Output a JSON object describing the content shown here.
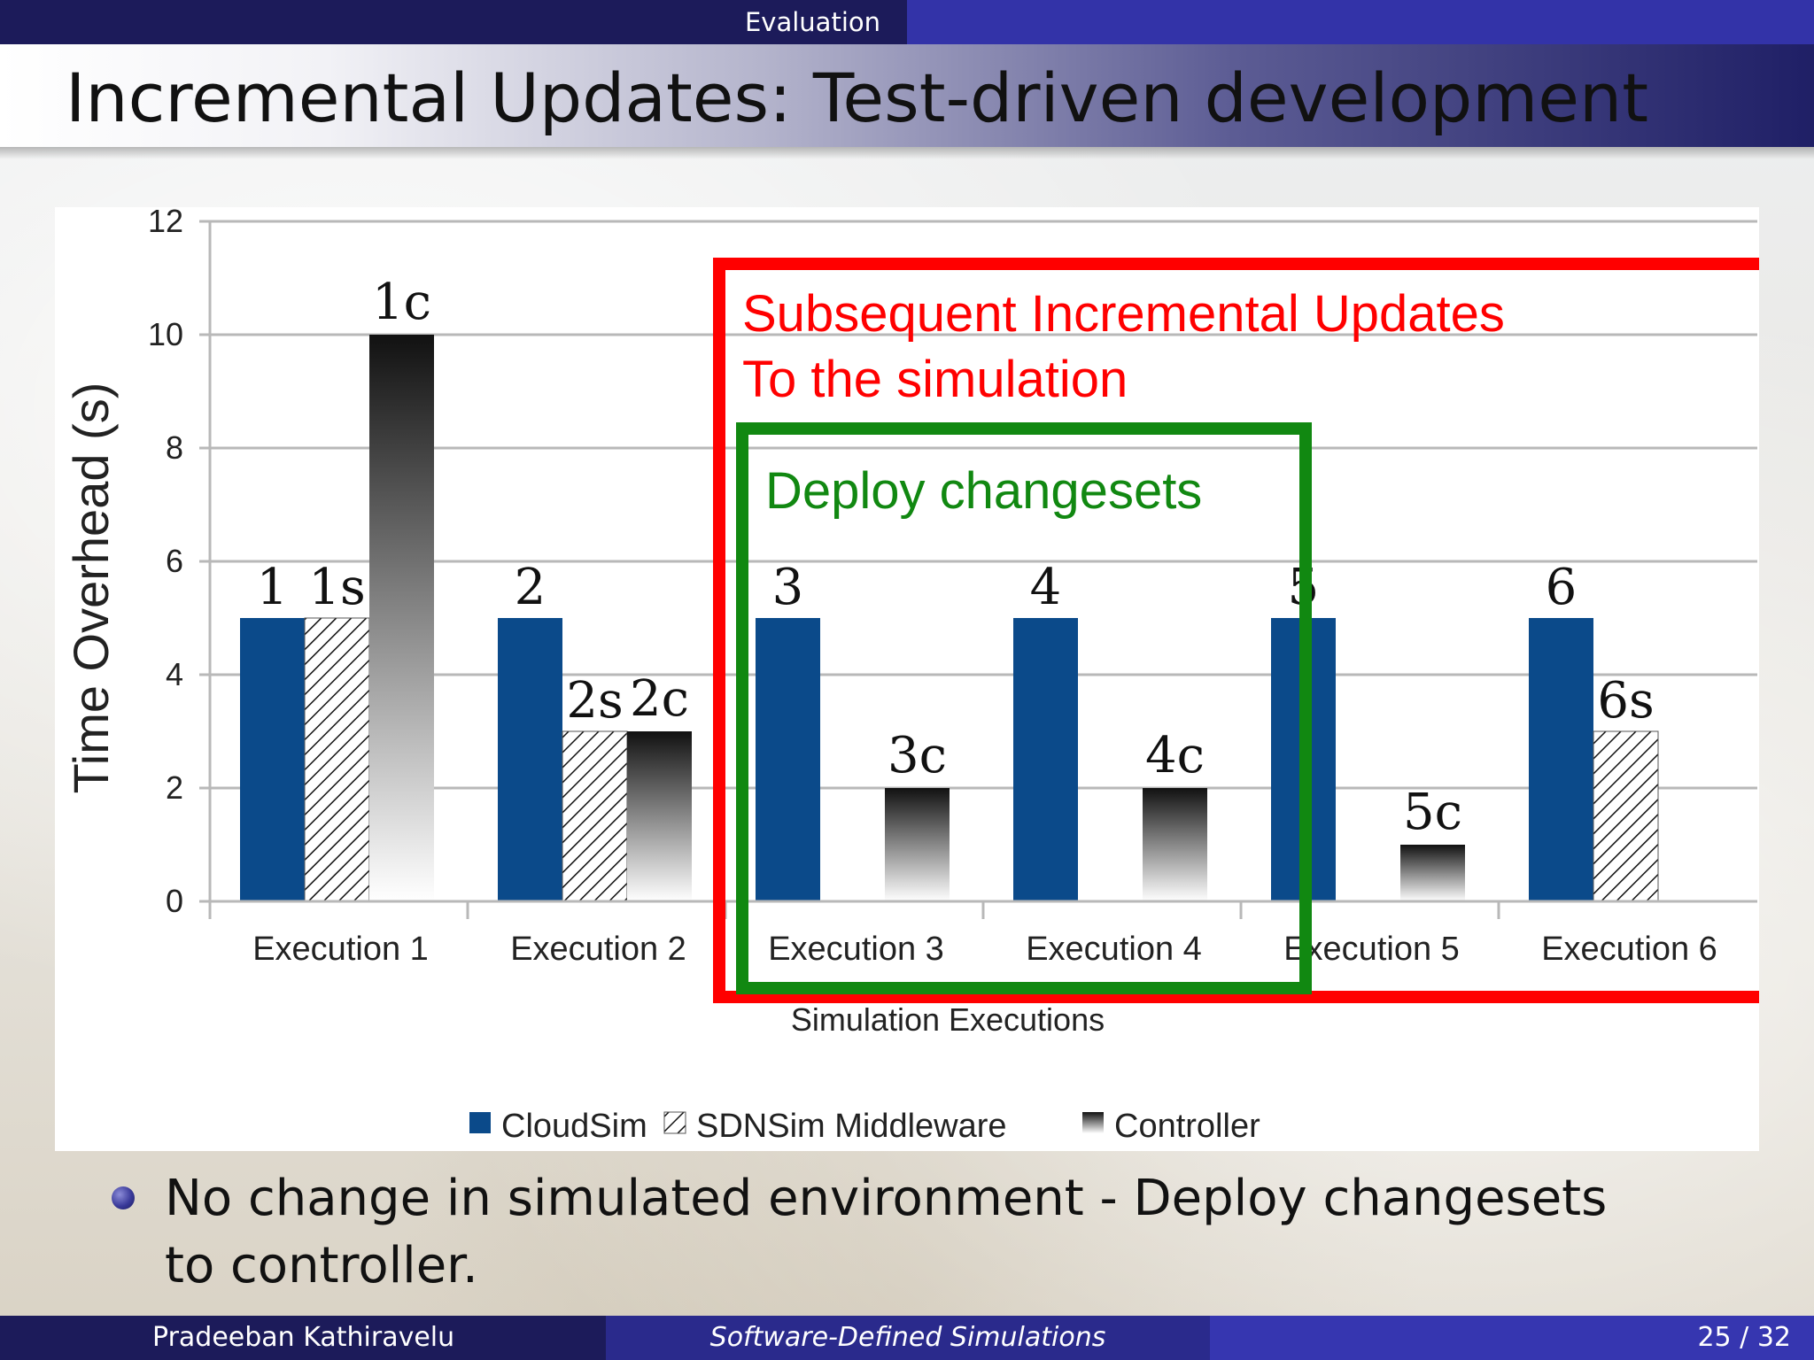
{
  "header": {
    "section": "Evaluation"
  },
  "title": "Incremental Updates:  Test-driven development",
  "bullet": "No change in simulated environment - Deploy changesets to controller.",
  "footer": {
    "author": "Pradeeban Kathiravelu",
    "talk": "Software-Defined Simulations",
    "page": "25 / 32"
  },
  "colors": {
    "cloudsim": "#0b4a8a",
    "highlight_outer": "#ff0000",
    "highlight_inner": "#118811"
  },
  "chart_data": {
    "type": "bar",
    "xlabel": "Simulation Executions",
    "ylabel": "Time Overhead (s)",
    "ylim": [
      0,
      12
    ],
    "yticks": [
      0,
      2,
      4,
      6,
      8,
      10,
      12
    ],
    "grid": true,
    "legend_position": "bottom",
    "categories": [
      "Execution 1",
      "Execution 2",
      "Execution 3",
      "Execution 4",
      "Execution 5",
      "Execution 6"
    ],
    "series": [
      {
        "name": "CloudSim",
        "pattern": "solid",
        "values": [
          5,
          5,
          5,
          5,
          5,
          5
        ],
        "labels": [
          "1",
          "2",
          "3",
          "4",
          "5",
          "6"
        ]
      },
      {
        "name": "SDNSim Middleware",
        "pattern": "hatched",
        "values": [
          5,
          3,
          null,
          null,
          null,
          3
        ],
        "labels": [
          "1s",
          "2s",
          null,
          null,
          null,
          "6s"
        ]
      },
      {
        "name": "Controller",
        "pattern": "gradient",
        "values": [
          10,
          3,
          2,
          2,
          1,
          null
        ],
        "labels": [
          "1c",
          "2c",
          "3c",
          "4c",
          "5c",
          null
        ]
      }
    ],
    "annotations": [
      {
        "text_lines": [
          "Subsequent Incremental Updates",
          "To the simulation"
        ],
        "box": "red",
        "from": "Execution 3",
        "to": "Execution 6"
      },
      {
        "text_lines": [
          "Deploy changesets"
        ],
        "box": "green",
        "from": "Execution 3",
        "to": "Execution 4"
      }
    ]
  }
}
